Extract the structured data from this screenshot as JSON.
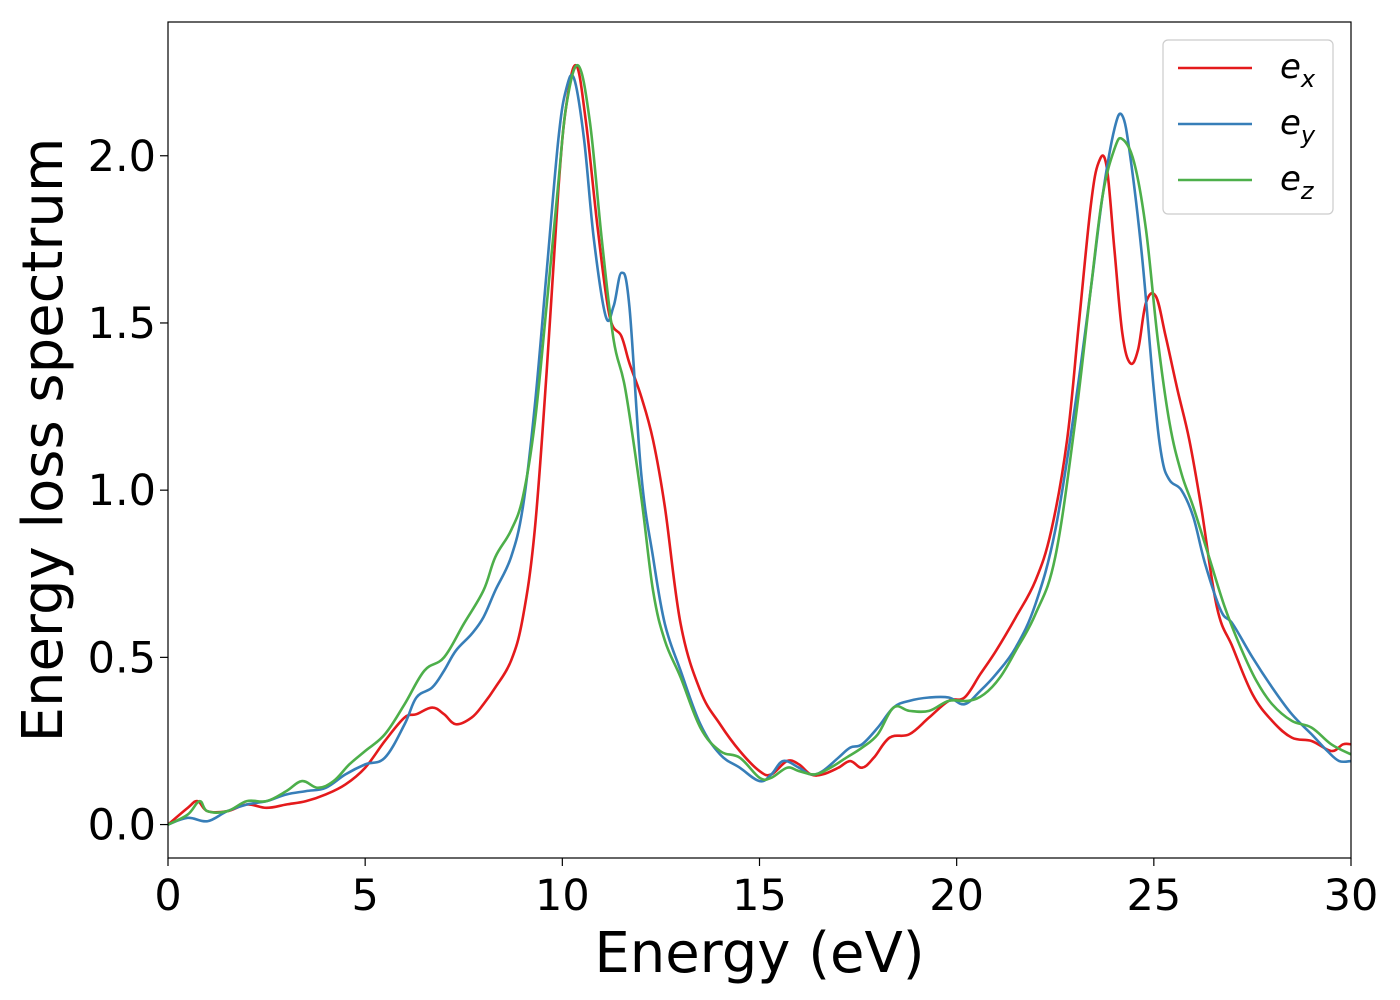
{
  "chart_data": {
    "type": "line",
    "xlabel": "Energy (eV)",
    "ylabel": "Energy loss spectrum",
    "xlim": [
      0,
      30
    ],
    "ylim": [
      -0.1,
      2.4
    ],
    "xticks": [
      0,
      5,
      10,
      15,
      20,
      25,
      30
    ],
    "yticks": [
      0.0,
      0.5,
      1.0,
      1.5,
      2.0
    ],
    "grid": false,
    "legend_position": "top-right",
    "series": [
      {
        "name": "e_x",
        "legend_base": "e",
        "legend_sub": "x",
        "color": "#e41a1c",
        "x": [
          0,
          0.5,
          0.75,
          1.0,
          1.5,
          2.0,
          2.5,
          3.0,
          3.5,
          4.0,
          4.5,
          5.0,
          5.5,
          6.0,
          6.3,
          6.7,
          7.0,
          7.3,
          7.7,
          8.0,
          8.3,
          8.7,
          9.0,
          9.3,
          9.6,
          9.9,
          10.1,
          10.35,
          10.6,
          10.9,
          11.2,
          11.5,
          11.7,
          12.0,
          12.3,
          12.6,
          13.0,
          13.5,
          14.0,
          14.5,
          15.0,
          15.3,
          15.7,
          16.0,
          16.3,
          16.6,
          17.0,
          17.3,
          17.6,
          17.9,
          18.3,
          18.8,
          19.3,
          19.8,
          20.2,
          20.6,
          21.0,
          21.5,
          22.0,
          22.4,
          22.8,
          23.1,
          23.4,
          23.6,
          23.8,
          24.0,
          24.2,
          24.4,
          24.6,
          24.8,
          25.05,
          25.3,
          25.6,
          25.9,
          26.2,
          26.6,
          27.0,
          27.5,
          28.0,
          28.5,
          29.0,
          29.5,
          29.8,
          30
        ],
        "y": [
          0.0,
          0.05,
          0.07,
          0.04,
          0.04,
          0.06,
          0.05,
          0.06,
          0.07,
          0.09,
          0.12,
          0.17,
          0.25,
          0.32,
          0.33,
          0.35,
          0.33,
          0.3,
          0.32,
          0.36,
          0.41,
          0.49,
          0.62,
          0.88,
          1.35,
          1.9,
          2.15,
          2.27,
          2.1,
          1.78,
          1.52,
          1.46,
          1.38,
          1.28,
          1.15,
          0.95,
          0.6,
          0.4,
          0.3,
          0.22,
          0.16,
          0.15,
          0.19,
          0.18,
          0.15,
          0.15,
          0.17,
          0.19,
          0.17,
          0.2,
          0.26,
          0.27,
          0.32,
          0.37,
          0.38,
          0.45,
          0.52,
          0.62,
          0.73,
          0.88,
          1.15,
          1.5,
          1.85,
          1.98,
          1.97,
          1.72,
          1.47,
          1.38,
          1.42,
          1.56,
          1.58,
          1.46,
          1.3,
          1.15,
          0.95,
          0.65,
          0.53,
          0.39,
          0.31,
          0.26,
          0.25,
          0.22,
          0.24,
          0.24
        ]
      },
      {
        "name": "e_y",
        "legend_base": "e",
        "legend_sub": "y",
        "color": "#377eb8",
        "x": [
          0,
          0.5,
          1.0,
          1.5,
          2.0,
          2.5,
          3.0,
          3.5,
          4.0,
          4.5,
          5.0,
          5.5,
          6.0,
          6.3,
          6.7,
          7.0,
          7.3,
          7.7,
          8.0,
          8.3,
          8.7,
          9.0,
          9.3,
          9.6,
          9.9,
          10.1,
          10.3,
          10.55,
          10.8,
          11.1,
          11.3,
          11.5,
          11.7,
          12.0,
          12.3,
          12.6,
          13.0,
          13.5,
          14.0,
          14.5,
          15.0,
          15.3,
          15.6,
          16.0,
          16.3,
          16.6,
          17.0,
          17.3,
          17.6,
          18.0,
          18.4,
          18.8,
          19.3,
          19.8,
          20.2,
          20.6,
          21.0,
          21.5,
          22.0,
          22.5,
          23.0,
          23.4,
          23.7,
          24.0,
          24.2,
          24.4,
          24.7,
          25.0,
          25.2,
          25.4,
          25.7,
          26.0,
          26.3,
          26.7,
          27.0,
          27.5,
          28.0,
          28.5,
          29.0,
          29.4,
          29.7,
          30
        ],
        "y": [
          0.0,
          0.02,
          0.01,
          0.04,
          0.06,
          0.07,
          0.09,
          0.1,
          0.11,
          0.15,
          0.18,
          0.2,
          0.3,
          0.38,
          0.41,
          0.46,
          0.52,
          0.57,
          0.62,
          0.7,
          0.8,
          0.95,
          1.25,
          1.65,
          2.05,
          2.2,
          2.23,
          2.05,
          1.75,
          1.52,
          1.55,
          1.65,
          1.55,
          1.05,
          0.8,
          0.6,
          0.46,
          0.3,
          0.21,
          0.17,
          0.13,
          0.15,
          0.19,
          0.17,
          0.15,
          0.16,
          0.2,
          0.23,
          0.24,
          0.29,
          0.35,
          0.37,
          0.38,
          0.38,
          0.36,
          0.4,
          0.45,
          0.53,
          0.66,
          0.88,
          1.25,
          1.6,
          1.88,
          2.08,
          2.12,
          2.0,
          1.7,
          1.3,
          1.1,
          1.03,
          1.0,
          0.92,
          0.78,
          0.64,
          0.6,
          0.5,
          0.41,
          0.33,
          0.27,
          0.22,
          0.19,
          0.19
        ]
      },
      {
        "name": "e_z",
        "legend_base": "e",
        "legend_sub": "z",
        "color": "#4daf4a",
        "x": [
          0,
          0.5,
          0.8,
          1.0,
          1.5,
          2.0,
          2.5,
          3.0,
          3.4,
          3.8,
          4.2,
          4.6,
          5.0,
          5.5,
          6.0,
          6.5,
          7.0,
          7.5,
          8.0,
          8.3,
          8.7,
          9.0,
          9.3,
          9.6,
          9.9,
          10.1,
          10.4,
          10.7,
          11.0,
          11.3,
          11.6,
          12.0,
          12.3,
          12.6,
          13.0,
          13.5,
          14.0,
          14.5,
          15.0,
          15.3,
          15.7,
          16.0,
          16.4,
          16.8,
          17.2,
          17.6,
          18.0,
          18.4,
          18.8,
          19.3,
          19.8,
          20.3,
          20.7,
          21.1,
          21.5,
          22.0,
          22.5,
          23.0,
          23.4,
          23.7,
          24.0,
          24.2,
          24.5,
          24.8,
          25.1,
          25.4,
          25.7,
          26.0,
          26.4,
          26.8,
          27.2,
          27.6,
          28.0,
          28.5,
          29.0,
          29.5,
          30
        ],
        "y": [
          0.0,
          0.03,
          0.07,
          0.04,
          0.04,
          0.07,
          0.07,
          0.1,
          0.13,
          0.11,
          0.13,
          0.18,
          0.22,
          0.27,
          0.36,
          0.46,
          0.5,
          0.6,
          0.7,
          0.8,
          0.88,
          0.98,
          1.2,
          1.55,
          1.92,
          2.15,
          2.27,
          2.1,
          1.75,
          1.45,
          1.3,
          0.98,
          0.7,
          0.55,
          0.44,
          0.29,
          0.22,
          0.2,
          0.14,
          0.14,
          0.17,
          0.16,
          0.15,
          0.17,
          0.2,
          0.23,
          0.27,
          0.35,
          0.34,
          0.34,
          0.37,
          0.37,
          0.39,
          0.44,
          0.52,
          0.63,
          0.8,
          1.2,
          1.6,
          1.88,
          2.02,
          2.05,
          1.98,
          1.78,
          1.45,
          1.2,
          1.05,
          0.95,
          0.8,
          0.65,
          0.53,
          0.43,
          0.36,
          0.31,
          0.29,
          0.24,
          0.21
        ]
      }
    ]
  }
}
